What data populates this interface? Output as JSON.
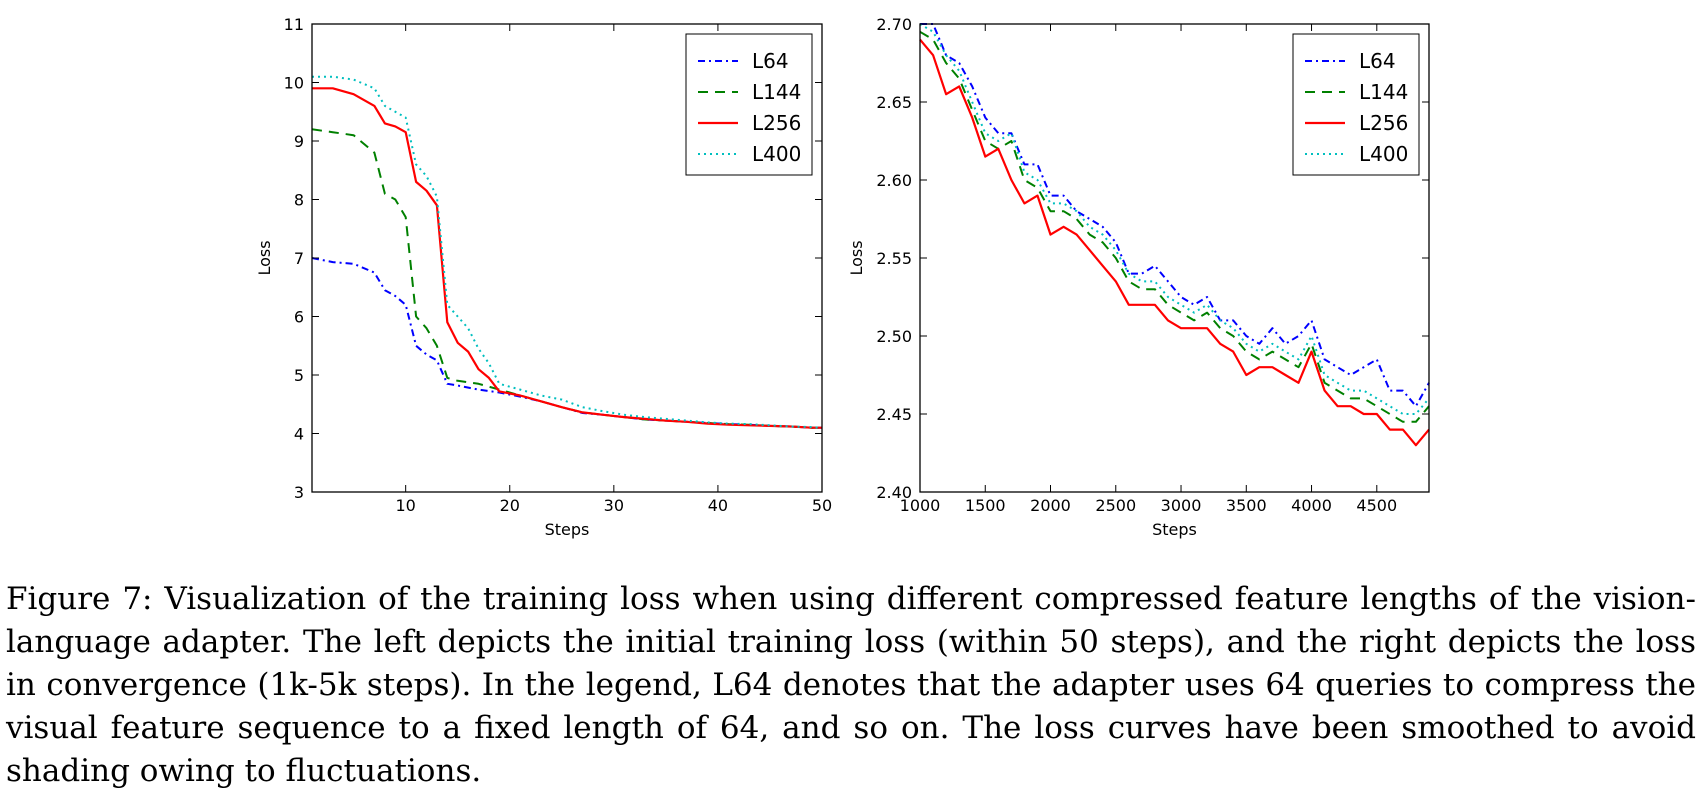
{
  "chart_data": [
    {
      "type": "line",
      "title": "",
      "xlabel": "Steps",
      "ylabel": "Loss",
      "xlim": [
        1,
        50
      ],
      "ylim": [
        3,
        11
      ],
      "xticks": [
        10,
        20,
        30,
        40,
        50
      ],
      "yticks": [
        3,
        4,
        5,
        6,
        7,
        8,
        9,
        10,
        11
      ],
      "grid": false,
      "legend_position": "top-right",
      "series": [
        {
          "name": "L64",
          "color": "#0000ff",
          "style": "dashdot",
          "x": [
            1,
            3,
            5,
            7,
            8,
            9,
            10,
            11,
            12,
            13,
            14,
            15,
            17,
            19,
            21,
            23,
            25,
            27,
            29,
            31,
            33,
            35,
            37,
            39,
            41,
            43,
            45,
            47,
            49,
            50
          ],
          "y": [
            7.0,
            6.93,
            6.9,
            6.75,
            6.45,
            6.35,
            6.2,
            5.5,
            5.35,
            5.25,
            4.85,
            4.82,
            4.75,
            4.7,
            4.63,
            4.55,
            4.45,
            4.35,
            4.32,
            4.28,
            4.24,
            4.22,
            4.2,
            4.18,
            4.16,
            4.15,
            4.13,
            4.12,
            4.1,
            4.1
          ]
        },
        {
          "name": "L144",
          "color": "#008000",
          "style": "dashed",
          "x": [
            1,
            3,
            5,
            7,
            8,
            9,
            10,
            11,
            12,
            13,
            14,
            15,
            17,
            19,
            21,
            23,
            25,
            27,
            29,
            31,
            33,
            35,
            37,
            39,
            41,
            43,
            45,
            47,
            49,
            50
          ],
          "y": [
            9.2,
            9.15,
            9.1,
            8.8,
            8.1,
            8.0,
            7.7,
            6.0,
            5.8,
            5.5,
            4.95,
            4.9,
            4.85,
            4.75,
            4.65,
            4.55,
            4.45,
            4.36,
            4.32,
            4.28,
            4.24,
            4.22,
            4.2,
            4.18,
            4.16,
            4.15,
            4.13,
            4.12,
            4.1,
            4.1
          ]
        },
        {
          "name": "L256",
          "color": "#ff0000",
          "style": "solid",
          "x": [
            1,
            3,
            5,
            7,
            8,
            9,
            10,
            11,
            12,
            13,
            14,
            15,
            16,
            17,
            18,
            19,
            21,
            23,
            25,
            27,
            29,
            31,
            33,
            35,
            37,
            39,
            41,
            43,
            45,
            47,
            49,
            50
          ],
          "y": [
            9.9,
            9.9,
            9.8,
            9.6,
            9.3,
            9.25,
            9.15,
            8.3,
            8.15,
            7.9,
            5.9,
            5.55,
            5.4,
            5.1,
            4.95,
            4.72,
            4.65,
            4.55,
            4.45,
            4.36,
            4.32,
            4.28,
            4.25,
            4.22,
            4.2,
            4.17,
            4.15,
            4.14,
            4.13,
            4.12,
            4.1,
            4.1
          ]
        },
        {
          "name": "L400",
          "color": "#00bfbf",
          "style": "dotted",
          "x": [
            1,
            3,
            5,
            7,
            8,
            9,
            10,
            11,
            12,
            13,
            14,
            15,
            16,
            17,
            18,
            19,
            21,
            23,
            25,
            27,
            29,
            31,
            33,
            35,
            37,
            39,
            41,
            43,
            45,
            47,
            49,
            50
          ],
          "y": [
            10.1,
            10.1,
            10.05,
            9.9,
            9.6,
            9.5,
            9.4,
            8.6,
            8.4,
            8.05,
            6.2,
            6.0,
            5.8,
            5.45,
            5.2,
            4.85,
            4.75,
            4.65,
            4.58,
            4.45,
            4.38,
            4.32,
            4.28,
            4.25,
            4.22,
            4.19,
            4.17,
            4.16,
            4.14,
            4.12,
            4.11,
            4.1
          ]
        }
      ]
    },
    {
      "type": "line",
      "title": "",
      "xlabel": "Steps",
      "ylabel": "Loss",
      "xlim": [
        1000,
        4900
      ],
      "ylim": [
        2.4,
        2.7
      ],
      "xticks": [
        1000,
        1500,
        2000,
        2500,
        3000,
        3500,
        4000,
        4500
      ],
      "yticks": [
        2.4,
        2.45,
        2.5,
        2.55,
        2.6,
        2.65,
        2.7
      ],
      "ytick_labels": [
        "2.40",
        "2.45",
        "2.50",
        "2.55",
        "2.60",
        "2.65",
        "2.70"
      ],
      "grid": false,
      "legend_position": "top-right",
      "series": [
        {
          "name": "L64",
          "color": "#0000ff",
          "style": "dashdot",
          "x": [
            1000,
            1100,
            1200,
            1300,
            1400,
            1500,
            1600,
            1700,
            1800,
            1900,
            2000,
            2100,
            2200,
            2300,
            2400,
            2500,
            2600,
            2700,
            2800,
            2900,
            3000,
            3100,
            3200,
            3300,
            3400,
            3500,
            3600,
            3700,
            3800,
            3900,
            4000,
            4100,
            4200,
            4300,
            4400,
            4500,
            4600,
            4700,
            4800,
            4900
          ],
          "y": [
            2.7,
            2.7,
            2.68,
            2.675,
            2.66,
            2.64,
            2.63,
            2.63,
            2.61,
            2.61,
            2.59,
            2.59,
            2.58,
            2.575,
            2.57,
            2.56,
            2.54,
            2.54,
            2.545,
            2.535,
            2.525,
            2.52,
            2.525,
            2.51,
            2.51,
            2.5,
            2.495,
            2.505,
            2.495,
            2.5,
            2.51,
            2.485,
            2.48,
            2.475,
            2.48,
            2.485,
            2.465,
            2.465,
            2.455,
            2.47
          ]
        },
        {
          "name": "L144",
          "color": "#008000",
          "style": "dashed",
          "x": [
            1000,
            1100,
            1200,
            1300,
            1400,
            1500,
            1600,
            1700,
            1800,
            1900,
            2000,
            2100,
            2200,
            2300,
            2400,
            2500,
            2600,
            2700,
            2800,
            2900,
            3000,
            3100,
            3200,
            3300,
            3400,
            3500,
            3600,
            3700,
            3800,
            3900,
            4000,
            4100,
            4200,
            4300,
            4400,
            4500,
            4600,
            4700,
            4800,
            4900
          ],
          "y": [
            2.695,
            2.69,
            2.675,
            2.665,
            2.645,
            2.625,
            2.62,
            2.625,
            2.6,
            2.595,
            2.58,
            2.58,
            2.575,
            2.565,
            2.56,
            2.55,
            2.535,
            2.53,
            2.53,
            2.52,
            2.515,
            2.51,
            2.515,
            2.505,
            2.5,
            2.49,
            2.485,
            2.49,
            2.485,
            2.48,
            2.495,
            2.47,
            2.465,
            2.46,
            2.46,
            2.455,
            2.45,
            2.445,
            2.445,
            2.455
          ]
        },
        {
          "name": "L256",
          "color": "#ff0000",
          "style": "solid",
          "x": [
            1000,
            1100,
            1200,
            1300,
            1400,
            1500,
            1600,
            1700,
            1800,
            1900,
            2000,
            2100,
            2200,
            2300,
            2400,
            2500,
            2600,
            2700,
            2800,
            2900,
            3000,
            3100,
            3200,
            3300,
            3400,
            3500,
            3600,
            3700,
            3800,
            3900,
            4000,
            4100,
            4200,
            4300,
            4400,
            4500,
            4600,
            4700,
            4800,
            4900
          ],
          "y": [
            2.69,
            2.68,
            2.655,
            2.66,
            2.64,
            2.615,
            2.62,
            2.6,
            2.585,
            2.59,
            2.565,
            2.57,
            2.565,
            2.555,
            2.545,
            2.535,
            2.52,
            2.52,
            2.52,
            2.51,
            2.505,
            2.505,
            2.505,
            2.495,
            2.49,
            2.475,
            2.48,
            2.48,
            2.475,
            2.47,
            2.49,
            2.465,
            2.455,
            2.455,
            2.45,
            2.45,
            2.44,
            2.44,
            2.43,
            2.44
          ]
        },
        {
          "name": "L400",
          "color": "#00bfbf",
          "style": "dotted",
          "x": [
            1000,
            1100,
            1200,
            1300,
            1400,
            1500,
            1600,
            1700,
            1800,
            1900,
            2000,
            2100,
            2200,
            2300,
            2400,
            2500,
            2600,
            2700,
            2800,
            2900,
            3000,
            3100,
            3200,
            3300,
            3400,
            3500,
            3600,
            3700,
            3800,
            3900,
            4000,
            4100,
            4200,
            4300,
            4400,
            4500,
            4600,
            4700,
            4800,
            4900
          ],
          "y": [
            2.7,
            2.695,
            2.68,
            2.67,
            2.65,
            2.63,
            2.625,
            2.63,
            2.605,
            2.6,
            2.585,
            2.585,
            2.58,
            2.57,
            2.565,
            2.555,
            2.54,
            2.535,
            2.535,
            2.525,
            2.52,
            2.515,
            2.52,
            2.51,
            2.505,
            2.495,
            2.49,
            2.495,
            2.49,
            2.485,
            2.5,
            2.475,
            2.47,
            2.465,
            2.465,
            2.46,
            2.455,
            2.45,
            2.45,
            2.46
          ]
        }
      ]
    }
  ],
  "caption": "Figure 7: Visualization of the training loss when using different compressed feature lengths of the vision-language adapter. The left depicts the initial training loss (within 50 steps), and the right depicts the loss in convergence (1k-5k steps). In the legend, L64 denotes that the adapter uses 64 queries to compress the visual feature sequence to a fixed length of 64, and so on. The loss curves have been smoothed to avoid shading owing to fluctuations."
}
